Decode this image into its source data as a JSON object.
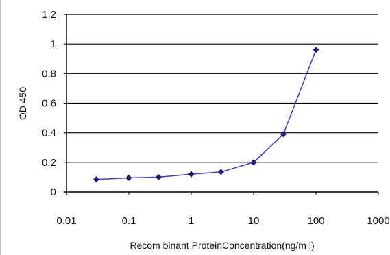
{
  "chart_data": {
    "type": "line",
    "xlabel": "Recom binant ProteinConcentration(ng/m l)",
    "ylabel": "OD 450",
    "xscale": "log",
    "xlim": [
      0.01,
      1000
    ],
    "ylim": [
      0,
      1.2
    ],
    "x_tick_labels": [
      "0.01",
      "0.1",
      "1",
      "10",
      "100",
      "1000"
    ],
    "y_tick_labels": [
      "0",
      "0.2",
      "0.4",
      "0.6",
      "0.8",
      "1",
      "1.2"
    ],
    "grid": "horizontal",
    "legend": "none",
    "series": [
      {
        "x": [
          0.03,
          0.1,
          0.3,
          1,
          3,
          10,
          30,
          100
        ],
        "y": [
          0.085,
          0.095,
          0.1,
          0.12,
          0.135,
          0.2,
          0.39,
          0.96
        ],
        "color": "#3a3ad8",
        "marker_color": "#1a1a80"
      }
    ],
    "frame_color": "#bdbdbd"
  }
}
